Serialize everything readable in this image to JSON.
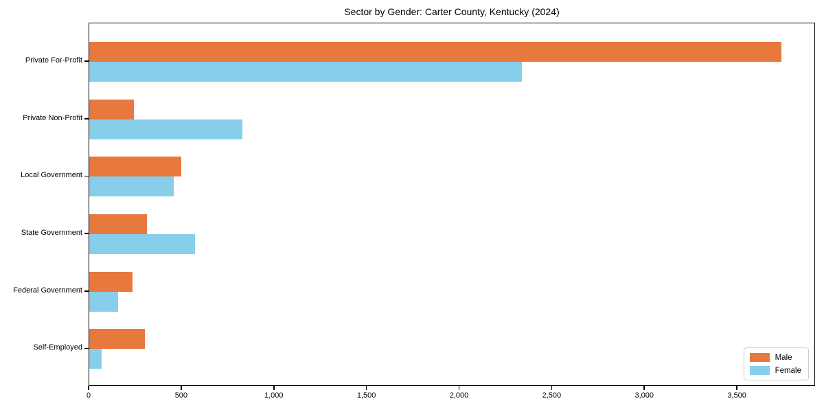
{
  "chart_data": {
    "type": "bar",
    "orientation": "horizontal",
    "title": "Sector by Gender: Carter County, Kentucky (2024)",
    "categories": [
      "Private For-Profit",
      "Private Non-Profit",
      "Local Government",
      "State Government",
      "Federal Government",
      "Self-Employed"
    ],
    "series": [
      {
        "name": "Male",
        "color": "#e8793d",
        "values": [
          3735,
          240,
          495,
          310,
          235,
          300
        ]
      },
      {
        "name": "Female",
        "color": "#87ceeb",
        "values": [
          2335,
          825,
          455,
          570,
          155,
          65
        ]
      }
    ],
    "xlim": [
      0,
      3922
    ],
    "xticks": [
      0,
      500,
      1000,
      1500,
      2000,
      2500,
      3000,
      3500
    ],
    "xtick_labels": [
      "0",
      "500",
      "1,000",
      "1,500",
      "2,000",
      "2,500",
      "3,000",
      "3,500"
    ],
    "grid": false,
    "legend": {
      "position": "lower right"
    },
    "axis_color": "#000000"
  }
}
